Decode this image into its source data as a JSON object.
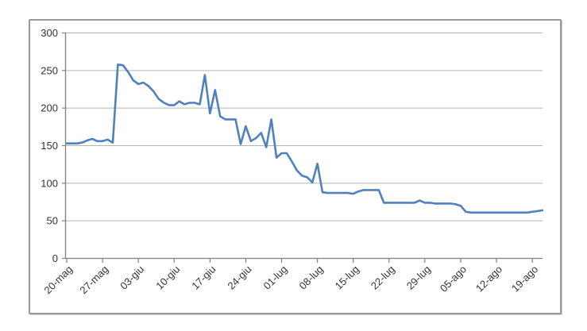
{
  "chart_data": {
    "type": "line",
    "title": "",
    "xlabel": "",
    "ylabel": "",
    "legend": "none",
    "grid": "horizontal",
    "ylim": [
      0,
      300
    ],
    "y_ticks": [
      0,
      50,
      100,
      150,
      200,
      250,
      300
    ],
    "x_tick_interval": 7,
    "x_tick_labels_shown": [
      "20-mag",
      "27-mag",
      "03-giu",
      "10-giu",
      "17-giu",
      "24-giu",
      "01-lug",
      "08-lug",
      "15-lug",
      "22-lug",
      "29-lug",
      "05-ago",
      "12-ago",
      "19-ago"
    ],
    "x": [
      "20-mag",
      "21-mag",
      "22-mag",
      "23-mag",
      "24-mag",
      "25-mag",
      "26-mag",
      "27-mag",
      "28-mag",
      "29-mag",
      "30-mag",
      "31-mag",
      "01-giu",
      "02-giu",
      "03-giu",
      "04-giu",
      "05-giu",
      "06-giu",
      "07-giu",
      "08-giu",
      "09-giu",
      "10-giu",
      "11-giu",
      "12-giu",
      "13-giu",
      "14-giu",
      "15-giu",
      "16-giu",
      "17-giu",
      "18-giu",
      "19-giu",
      "20-giu",
      "21-giu",
      "22-giu",
      "23-giu",
      "24-giu",
      "25-giu",
      "26-giu",
      "27-giu",
      "28-giu",
      "29-giu",
      "30-giu",
      "01-lug",
      "02-lug",
      "03-lug",
      "04-lug",
      "05-lug",
      "06-lug",
      "07-lug",
      "08-lug",
      "09-lug",
      "10-lug",
      "11-lug",
      "12-lug",
      "13-lug",
      "14-lug",
      "15-lug",
      "16-lug",
      "17-lug",
      "18-lug",
      "19-lug",
      "20-lug",
      "21-lug",
      "22-lug",
      "23-lug",
      "24-lug",
      "25-lug",
      "26-lug",
      "27-lug",
      "28-lug",
      "29-lug",
      "30-lug",
      "31-lug",
      "01-ago",
      "02-ago",
      "03-ago",
      "04-ago",
      "05-ago",
      "06-ago",
      "07-ago",
      "08-ago",
      "09-ago",
      "10-ago",
      "11-ago",
      "12-ago",
      "13-ago",
      "14-ago",
      "15-ago",
      "16-ago",
      "17-ago",
      "18-ago",
      "19-ago",
      "20-ago",
      "21-ago"
    ],
    "series": [
      {
        "name": "serie1",
        "color": "#4F81BD",
        "values": [
          153,
          153,
          153,
          154,
          157,
          159,
          156,
          156,
          158,
          154,
          258,
          257,
          248,
          237,
          232,
          234,
          229,
          222,
          212,
          207,
          204,
          204,
          209,
          205,
          207,
          207,
          205,
          244,
          193,
          224,
          189,
          185,
          185,
          185,
          152,
          176,
          156,
          160,
          167,
          148,
          185,
          134,
          140,
          140,
          129,
          117,
          110,
          108,
          101,
          126,
          88,
          87,
          87,
          87,
          87,
          87,
          86,
          89,
          91,
          91,
          91,
          91,
          74,
          74,
          74,
          74,
          74,
          74,
          74,
          77,
          74,
          74,
          73,
          73,
          73,
          73,
          72,
          70,
          62,
          61,
          61,
          61,
          61,
          61,
          61,
          61,
          61,
          61,
          61,
          61,
          61,
          62,
          63,
          64
        ]
      }
    ],
    "colors": {
      "line": "#4F81BD",
      "gridline": "#B3B3B3",
      "axis": "#808080",
      "tick_label": "#333333",
      "frame_border": "#999999",
      "background": "#FFFFFF"
    }
  }
}
